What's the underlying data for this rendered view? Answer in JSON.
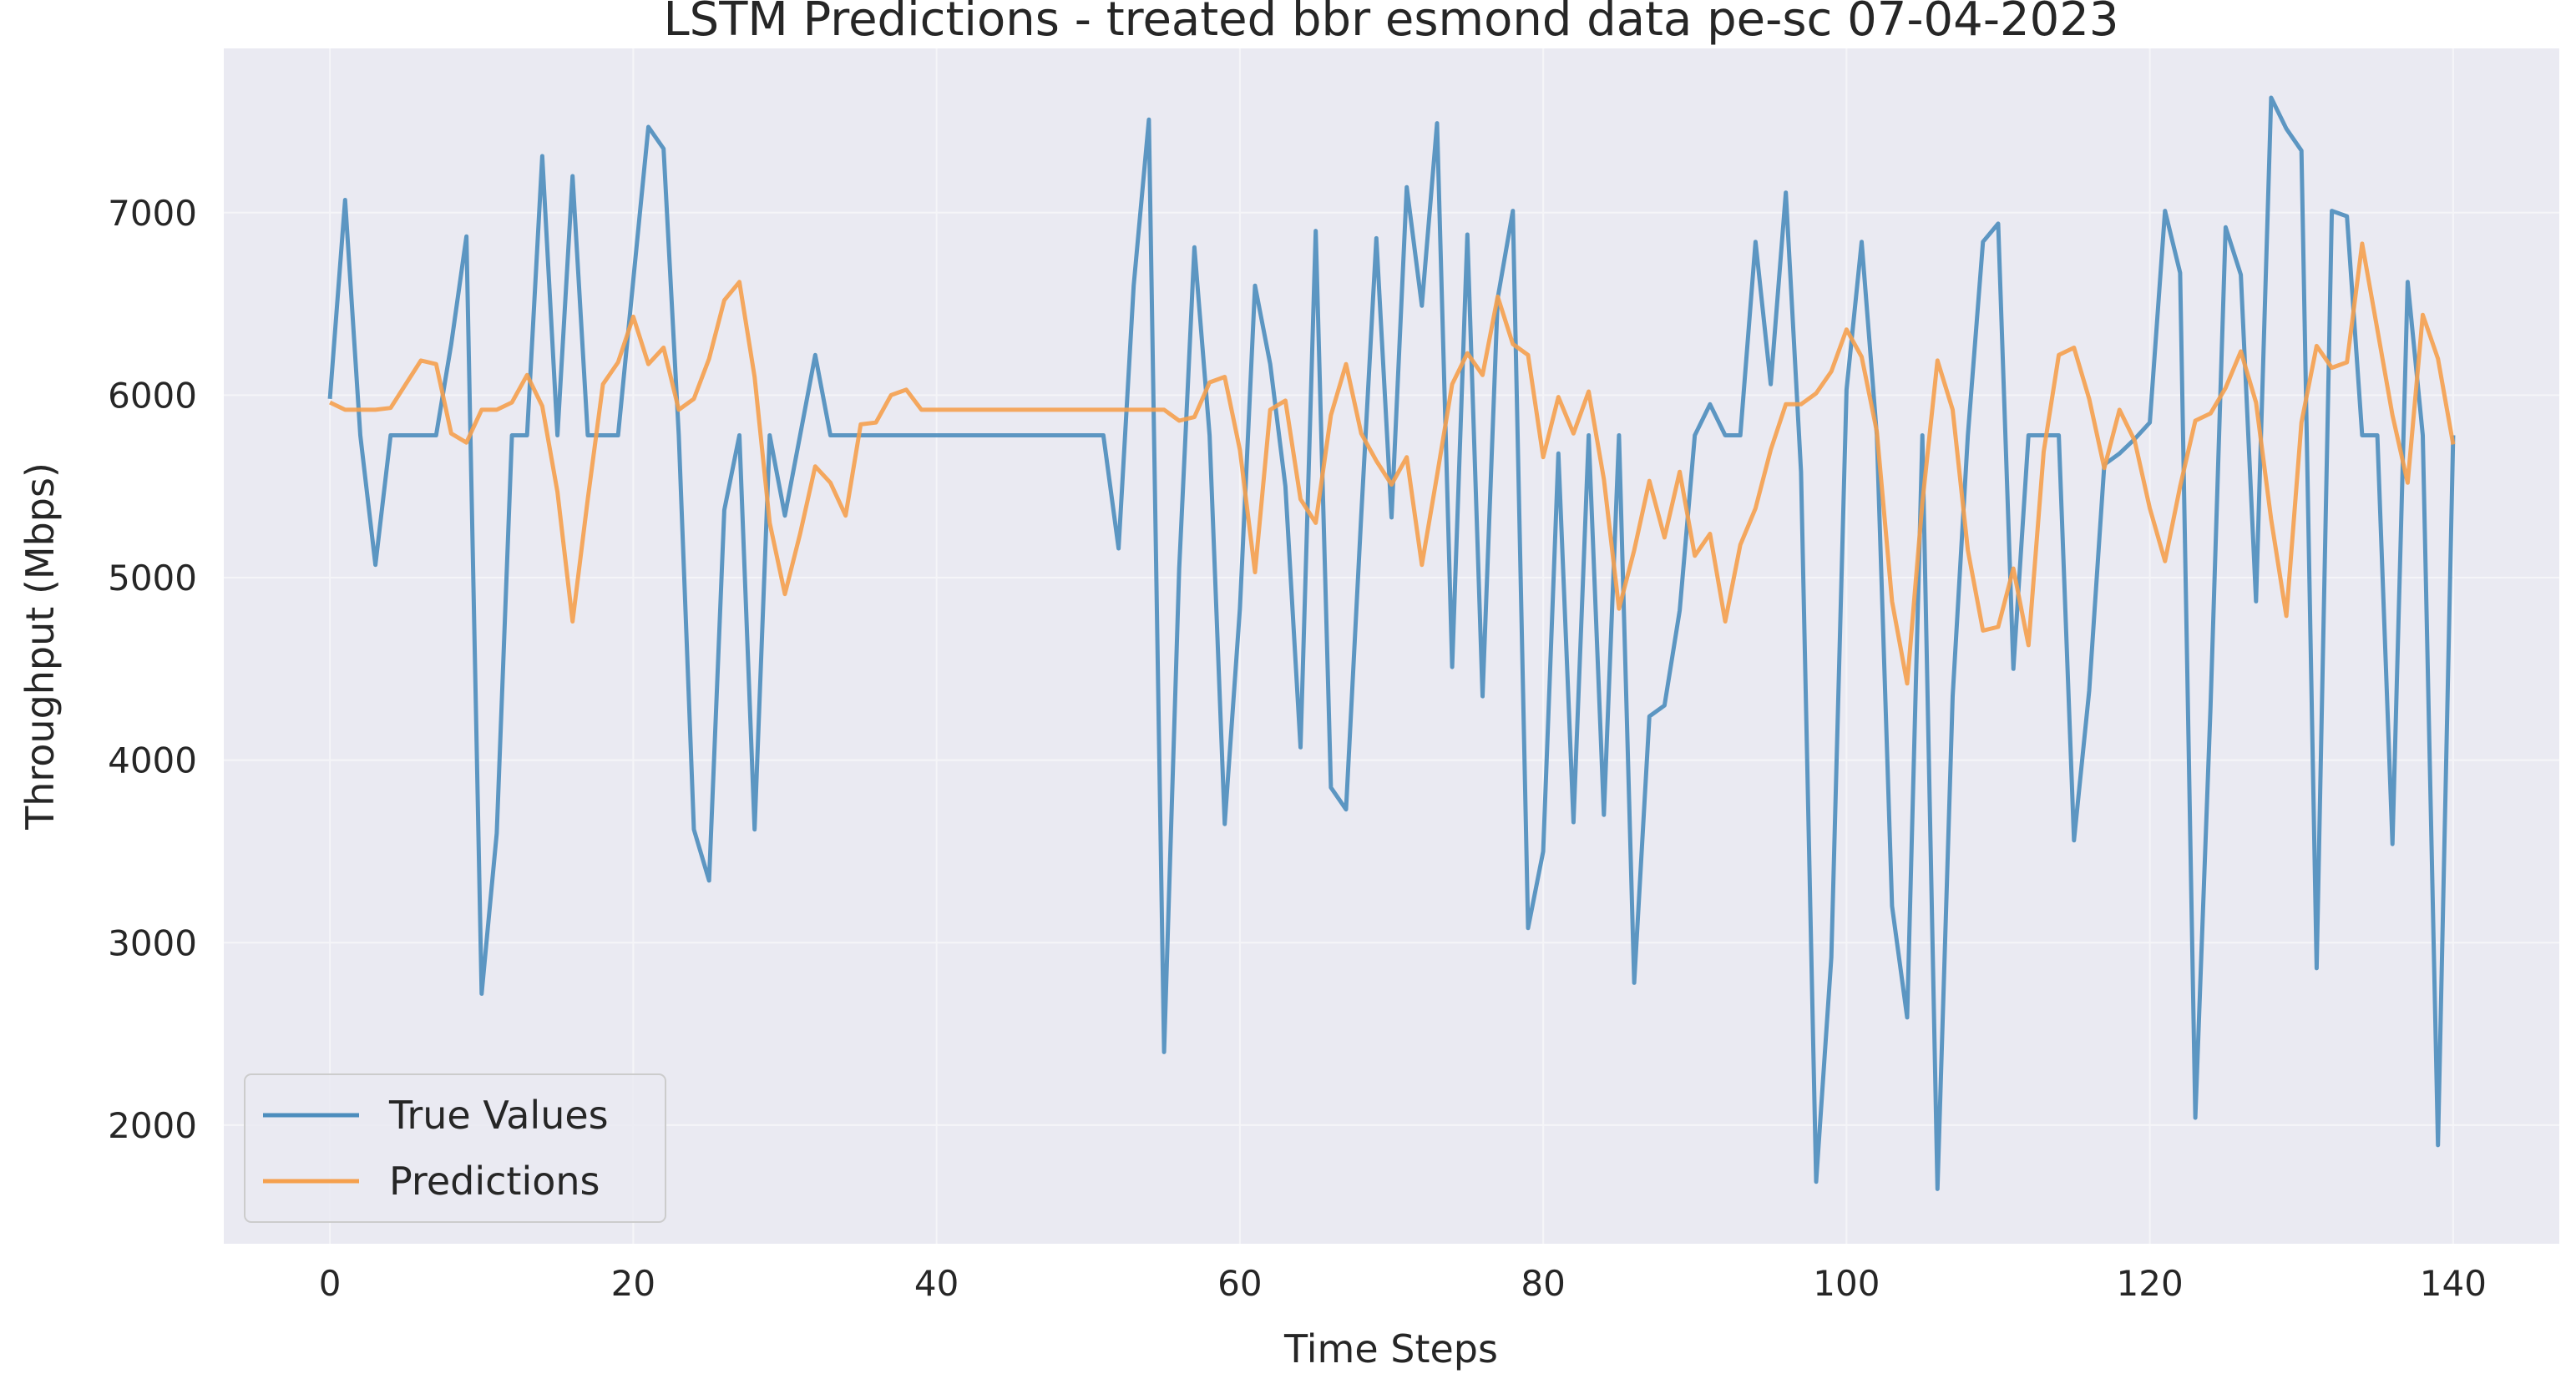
{
  "chart_data": {
    "type": "line",
    "title": "LSTM Predictions - treated bbr esmond data pe-sc 07-04-2023",
    "xlabel": "Time Steps",
    "ylabel": "Throughput (Mbps)",
    "xlim": [
      -7,
      147
    ],
    "ylim": [
      1350,
      7900
    ],
    "xticks": [
      0,
      20,
      40,
      60,
      80,
      100,
      120,
      140
    ],
    "xtick_labels": [
      "0",
      "20",
      "40",
      "60",
      "80",
      "100",
      "120",
      "140"
    ],
    "yticks": [
      2000,
      3000,
      4000,
      5000,
      6000,
      7000
    ],
    "ytick_labels": [
      "2000",
      "3000",
      "4000",
      "5000",
      "6000",
      "7000"
    ],
    "grid": true,
    "legend_position": "lower-left",
    "series": [
      {
        "name": "True Values",
        "color": "#4c8dbd",
        "values": [
          5980,
          7070,
          5780,
          5070,
          5780,
          5780,
          5780,
          5780,
          6280,
          6870,
          2720,
          3600,
          5780,
          5780,
          7310,
          5780,
          7200,
          5780,
          5780,
          5780,
          6630,
          7470,
          7350,
          5780,
          3620,
          3340,
          5370,
          5780,
          3620,
          5780,
          5340,
          5780,
          6220,
          5780,
          5780,
          5780,
          5780,
          5780,
          5780,
          5780,
          5780,
          5780,
          5780,
          5780,
          5780,
          5780,
          5780,
          5780,
          5780,
          5780,
          5780,
          5780,
          5160,
          6600,
          7510,
          2400,
          5050,
          6810,
          5780,
          3650,
          4830,
          6600,
          6170,
          5500,
          4070,
          6900,
          3850,
          3730,
          5340,
          6860,
          5330,
          7140,
          6490,
          7490,
          4510,
          6880,
          4350,
          6530,
          7010,
          3080,
          3500,
          5680,
          3660,
          5780,
          3700,
          5780,
          2780,
          4240,
          4300,
          4820,
          5780,
          5950,
          5780,
          5780,
          6840,
          6060,
          7110,
          5580,
          1690,
          2920,
          6030,
          6840,
          5780,
          3200,
          2590,
          5780,
          1650,
          4350,
          5780,
          6840,
          6940,
          4500,
          5780,
          5780,
          5780,
          3560,
          4380,
          5620,
          5680,
          5760,
          5850,
          7010,
          6670,
          2040,
          4290,
          6920,
          6660,
          4870,
          7630,
          7460,
          7340,
          2860,
          7010,
          6980,
          5780,
          5780,
          3540,
          6620,
          5780,
          1890,
          5780
        ]
      },
      {
        "name": "Predictions",
        "color": "#f5a04e",
        "values": [
          5960,
          5920,
          5920,
          5920,
          5930,
          6060,
          6190,
          6170,
          5790,
          5740,
          5920,
          5920,
          5960,
          6110,
          5940,
          5470,
          4760,
          5430,
          6060,
          6180,
          6430,
          6170,
          6260,
          5920,
          5980,
          6200,
          6520,
          6620,
          6100,
          5300,
          4910,
          5240,
          5610,
          5520,
          5340,
          5840,
          5850,
          6000,
          6030,
          5920,
          5920,
          5920,
          5920,
          5920,
          5920,
          5920,
          5920,
          5920,
          5920,
          5920,
          5920,
          5920,
          5920,
          5920,
          5920,
          5920,
          5860,
          5880,
          6070,
          6100,
          5700,
          5030,
          5920,
          5970,
          5430,
          5300,
          5890,
          6170,
          5790,
          5640,
          5510,
          5660,
          5070,
          5560,
          6060,
          6230,
          6110,
          6540,
          6280,
          6220,
          5660,
          5990,
          5790,
          6020,
          5540,
          4830,
          5150,
          5530,
          5220,
          5580,
          5120,
          5240,
          4760,
          5180,
          5380,
          5700,
          5950,
          5950,
          6010,
          6130,
          6360,
          6210,
          5800,
          4870,
          4420,
          5410,
          6190,
          5920,
          5150,
          4710,
          4730,
          5050,
          4630,
          5690,
          6220,
          6260,
          5980,
          5600,
          5920,
          5750,
          5380,
          5090,
          5500,
          5860,
          5900,
          6040,
          6240,
          5960,
          5320,
          4790,
          5850,
          6270,
          6150,
          6180,
          6830,
          6360,
          5890,
          5520,
          6440,
          6200,
          5730
        ]
      }
    ]
  }
}
